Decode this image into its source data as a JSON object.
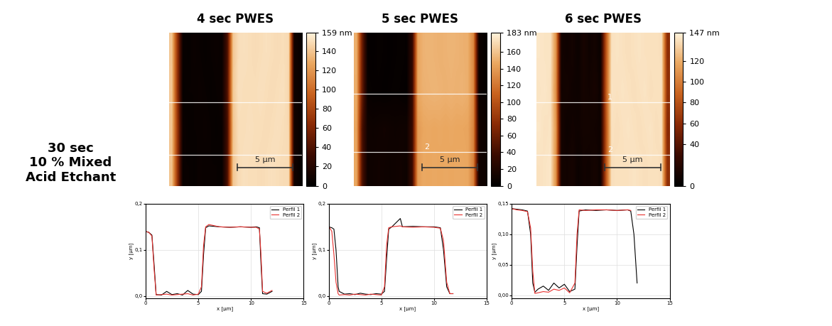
{
  "row_label": [
    "30 sec",
    "10 % Mixed",
    "Acid Etchant"
  ],
  "chart_data": [
    {
      "type": "heatmap",
      "title": "4 sec PWES",
      "tick_labels": false,
      "xlim": [
        0,
        12
      ],
      "ylim": [
        0,
        15
      ],
      "cells": [
        [
          140,
          70,
          5,
          4,
          6,
          5,
          4,
          5,
          6,
          5,
          40,
          140,
          150,
          151,
          150,
          149,
          150,
          151,
          150,
          149,
          150,
          148,
          10,
          5
        ],
        [
          141,
          68,
          4,
          5,
          5,
          6,
          5,
          4,
          5,
          6,
          42,
          141,
          151,
          150,
          150,
          150,
          151,
          150,
          149,
          150,
          151,
          147,
          9,
          6
        ],
        [
          140,
          72,
          6,
          4,
          5,
          5,
          6,
          5,
          4,
          5,
          38,
          139,
          150,
          150,
          151,
          150,
          150,
          149,
          150,
          151,
          150,
          148,
          11,
          5
        ],
        [
          139,
          70,
          5,
          5,
          4,
          6,
          5,
          5,
          5,
          4,
          40,
          140,
          149,
          151,
          150,
          150,
          149,
          150,
          151,
          150,
          149,
          149,
          10,
          4
        ]
      ],
      "colorbar": {
        "range": [
          0,
          159
        ],
        "ticks": [
          0,
          20,
          40,
          60,
          80,
          100,
          120,
          140,
          {
            "value": 159,
            "label": "159 nm"
          }
        ]
      },
      "profile_lines": [
        {
          "y": 8.2
        },
        {
          "y": 3.0
        }
      ],
      "scale_bar": {
        "length": 5,
        "label": "5 µm"
      }
    },
    {
      "type": "heatmap",
      "title": "5 sec PWES",
      "tick_labels": false,
      "xlim": [
        0,
        12
      ],
      "ylim": [
        0,
        15
      ],
      "cells": [
        [
          150,
          60,
          4,
          3,
          5,
          4,
          3,
          4,
          5,
          4,
          30,
          145,
          152,
          153,
          152,
          151,
          152,
          153,
          152,
          151,
          150,
          130,
          8,
          4
        ],
        [
          149,
          58,
          5,
          4,
          4,
          3,
          4,
          5,
          4,
          3,
          32,
          146,
          151,
          152,
          153,
          152,
          151,
          152,
          151,
          152,
          150,
          131,
          7,
          5
        ],
        [
          145,
          45,
          10,
          9,
          10,
          11,
          10,
          9,
          10,
          10,
          35,
          140,
          146,
          147,
          146,
          147,
          146,
          147,
          146,
          146,
          145,
          128,
          12,
          9
        ],
        [
          146,
          47,
          9,
          10,
          11,
          10,
          9,
          10,
          11,
          9,
          36,
          141,
          147,
          146,
          147,
          146,
          147,
          146,
          147,
          147,
          146,
          127,
          11,
          10
        ]
      ],
      "colorbar": {
        "range": [
          0,
          183
        ],
        "ticks": [
          0,
          20,
          40,
          60,
          80,
          100,
          120,
          140,
          160,
          {
            "value": 183,
            "label": "183 nm"
          }
        ]
      },
      "profile_lines": [
        {
          "y": 9.0
        },
        {
          "y": 3.3,
          "label": "2"
        }
      ],
      "scale_bar": {
        "length": 5,
        "label": "5 µm"
      }
    },
    {
      "type": "heatmap",
      "title": "6 sec PWES",
      "tick_labels": false,
      "xlim": [
        0,
        12
      ],
      "ylim": [
        0,
        15
      ],
      "cells": [
        [
          142,
          141,
          141,
          110,
          10,
          8,
          10,
          6,
          12,
          8,
          10,
          6,
          80,
          140,
          141,
          140,
          139,
          140,
          141,
          140,
          140,
          140,
          139,
          60
        ],
        [
          141,
          142,
          140,
          108,
          9,
          10,
          8,
          7,
          11,
          9,
          12,
          7,
          82,
          141,
          140,
          141,
          140,
          139,
          140,
          141,
          139,
          140,
          140,
          62
        ],
        [
          142,
          140,
          141,
          112,
          11,
          7,
          9,
          8,
          10,
          10,
          9,
          8,
          78,
          140,
          139,
          140,
          141,
          140,
          139,
          140,
          141,
          139,
          140,
          58
        ],
        [
          140,
          141,
          142,
          109,
          10,
          9,
          11,
          6,
          9,
          8,
          11,
          7,
          80,
          139,
          140,
          140,
          140,
          141,
          140,
          139,
          140,
          140,
          139,
          61
        ]
      ],
      "colorbar": {
        "range": [
          0,
          147
        ],
        "ticks": [
          0,
          40,
          60,
          80,
          100,
          120,
          {
            "value": 147,
            "label": "147 nm"
          }
        ]
      },
      "profile_lines": [
        {
          "y": 8.2,
          "label": "1"
        },
        {
          "y": 3.0,
          "label": "2"
        }
      ],
      "scale_bar": {
        "length": 5,
        "label": "5 µm"
      }
    },
    {
      "type": "line",
      "x_label": "x [µm]",
      "y_label": "y [µm]",
      "grid": true,
      "legend": "upper right",
      "xlim": [
        0,
        15
      ],
      "xticks": [
        0,
        5,
        10,
        15
      ],
      "ylim": [
        -0.005,
        0.2
      ],
      "yticks": [
        {
          "value": 0,
          "label": "0,0"
        },
        {
          "value": 0.1,
          "label": "0,1"
        },
        {
          "value": 0.2,
          "label": "0,2"
        }
      ],
      "x": [
        0,
        0.3,
        0.6,
        0.8,
        1.0,
        1.5,
        2,
        2.5,
        3,
        3.5,
        4,
        4.5,
        5,
        5.3,
        5.5,
        5.7,
        6,
        7,
        8,
        9,
        10,
        10.5,
        10.8,
        10.95,
        11.1,
        11.5,
        12
      ],
      "series": [
        {
          "name": "Perfil 1",
          "color": "#000000",
          "values": [
            0.14,
            0.138,
            0.132,
            0.07,
            0.003,
            0.002,
            0.01,
            0.003,
            0.005,
            0.002,
            0.012,
            0.004,
            0.003,
            0.01,
            0.09,
            0.148,
            0.152,
            0.15,
            0.149,
            0.15,
            0.149,
            0.15,
            0.148,
            0.07,
            0.005,
            0.004,
            0.01
          ]
        },
        {
          "name": "Perfil 2",
          "color": "#e8312f",
          "values": [
            0.14,
            0.138,
            0.13,
            0.06,
            0.002,
            0.003,
            0.004,
            0.002,
            0.003,
            0.004,
            0.005,
            0.002,
            0.004,
            0.02,
            0.11,
            0.15,
            0.155,
            0.15,
            0.149,
            0.15,
            0.149,
            0.149,
            0.145,
            0.09,
            0.01,
            0.006,
            0.012
          ]
        }
      ]
    },
    {
      "type": "line",
      "x_label": "x [µm]",
      "y_label": "y [µm]",
      "grid": true,
      "legend": "upper right",
      "xlim": [
        0,
        15
      ],
      "xticks": [
        0,
        5,
        10,
        15
      ],
      "ylim": [
        -0.005,
        0.2
      ],
      "yticks": [
        {
          "value": 0,
          "label": "0,0"
        },
        {
          "value": 0.1,
          "label": "0,1"
        },
        {
          "value": 0.2,
          "label": "0,2"
        }
      ],
      "x": [
        0,
        0.3,
        0.5,
        0.7,
        0.9,
        1.0,
        1.5,
        2,
        2.5,
        3,
        3.5,
        4,
        4.5,
        5,
        5.3,
        5.5,
        5.7,
        6,
        6.8,
        7,
        8,
        9,
        10,
        10.6,
        10.9,
        11.2,
        11.5,
        11.8
      ],
      "series": [
        {
          "name": "Perfil 1",
          "color": "#000000",
          "values": [
            0.15,
            0.148,
            0.145,
            0.1,
            0.02,
            0.01,
            0.004,
            0.005,
            0.003,
            0.006,
            0.004,
            0.003,
            0.005,
            0.004,
            0.01,
            0.08,
            0.145,
            0.15,
            0.168,
            0.15,
            0.151,
            0.15,
            0.15,
            0.148,
            0.1,
            0.02,
            0.005,
            0.005
          ]
        },
        {
          "name": "Perfil 2",
          "color": "#e8312f",
          "values": [
            0.152,
            0.14,
            0.09,
            0.03,
            0.005,
            0.002,
            0.003,
            0.002,
            0.004,
            0.003,
            0.002,
            0.004,
            0.003,
            0.002,
            0.02,
            0.11,
            0.148,
            0.15,
            0.152,
            0.15,
            0.149,
            0.15,
            0.149,
            0.147,
            0.12,
            0.03,
            0.005,
            0.005
          ]
        }
      ]
    },
    {
      "type": "line",
      "x_label": "x [µm]",
      "y_label": "y [µm]",
      "grid": true,
      "legend": "upper right",
      "xlim": [
        0,
        15
      ],
      "xticks": [
        0,
        5,
        10,
        15
      ],
      "ylim": [
        -0.005,
        0.15
      ],
      "yticks": [
        {
          "value": 0,
          "label": "0,00"
        },
        {
          "value": 0.05,
          "label": "0,05"
        },
        {
          "value": 0.1,
          "label": "0,10"
        },
        {
          "value": 0.15,
          "label": "0,15"
        }
      ],
      "x": [
        0,
        0.5,
        1,
        1.5,
        1.8,
        2.0,
        2.2,
        2.5,
        3,
        3.5,
        4,
        4.5,
        5,
        5.5,
        6.0,
        6.2,
        6.4,
        7,
        8,
        9,
        10,
        11,
        11.3,
        11.6,
        11.9
      ],
      "series": [
        {
          "name": "Perfil 1",
          "color": "#000000",
          "values": [
            0.142,
            0.141,
            0.14,
            0.138,
            0.1,
            0.02,
            0.005,
            0.01,
            0.015,
            0.008,
            0.02,
            0.012,
            0.018,
            0.006,
            0.01,
            0.08,
            0.138,
            0.14,
            0.139,
            0.14,
            0.139,
            0.14,
            0.138,
            0.1,
            0.02
          ]
        },
        {
          "name": "Perfil 2",
          "color": "#e8312f",
          "values": [
            0.142,
            0.14,
            0.139,
            0.137,
            0.11,
            0.04,
            0.003,
            0.004,
            0.006,
            0.005,
            0.01,
            0.008,
            0.012,
            0.004,
            0.02,
            0.1,
            0.14,
            0.139,
            0.14,
            0.14,
            0.139,
            0.14,
            0.139,
            null,
            null
          ]
        }
      ]
    }
  ]
}
